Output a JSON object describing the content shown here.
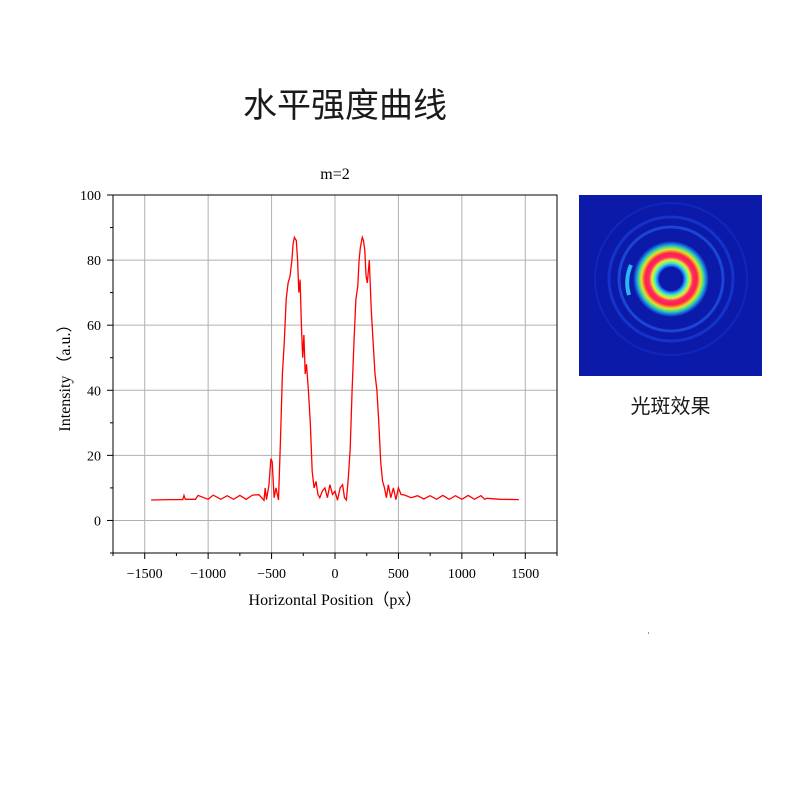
{
  "page_title": "水平强度曲线",
  "spot_caption": "光斑效果",
  "colors": {
    "curve": "#ff0000",
    "grid": "#b0b0b0",
    "axis": "#000000",
    "spot_background": "#0b1aa8"
  },
  "chart_data": {
    "type": "line",
    "title": "m=2",
    "xlabel": "Horizontal Position（px）",
    "ylabel": "Intensity （a.u.）",
    "xlim": [
      -1750,
      1750
    ],
    "ylim": [
      -10,
      100
    ],
    "xticks": [
      -1500,
      -1000,
      -500,
      0,
      500,
      1000,
      1500
    ],
    "xtick_labels": [
      "−1500",
      "−1000",
      "−500",
      "0",
      "500",
      "1000",
      "1500"
    ],
    "yticks": [
      0,
      20,
      40,
      60,
      80,
      100
    ],
    "ytick_labels": [
      "0",
      "20",
      "40",
      "60",
      "80",
      "100"
    ],
    "grid": true,
    "series": [
      {
        "x": [
          -1450,
          -1300,
          -1200,
          -1190,
          -1180,
          -1100,
          -1080,
          -1000,
          -960,
          -900,
          -850,
          -800,
          -750,
          -700,
          -650,
          -600,
          -560,
          -550,
          -540,
          -520,
          -505,
          -495,
          -480,
          -465,
          -455,
          -445,
          -430,
          -415,
          -400,
          -385,
          -370,
          -355,
          -340,
          -330,
          -320,
          -305,
          -295,
          -285,
          -275,
          -265,
          -255,
          -245,
          -235,
          -225,
          -210,
          -195,
          -180,
          -165,
          -150,
          -135,
          -120,
          -100,
          -80,
          -60,
          -40,
          -20,
          0,
          20,
          40,
          60,
          75,
          90,
          105,
          120,
          135,
          150,
          165,
          180,
          190,
          200,
          215,
          225,
          235,
          245,
          255,
          270,
          285,
          300,
          315,
          330,
          345,
          360,
          375,
          390,
          405,
          420,
          440,
          460,
          480,
          500,
          520,
          550,
          600,
          650,
          700,
          750,
          800,
          850,
          900,
          950,
          1000,
          1050,
          1100,
          1150,
          1180,
          1200,
          1300,
          1450
        ],
        "values": [
          6.3,
          6.4,
          6.4,
          7.7,
          6.5,
          6.5,
          7.7,
          6.5,
          7.8,
          6.5,
          7.6,
          6.5,
          7.7,
          6.5,
          7.8,
          7.9,
          6.2,
          10,
          6.4,
          11,
          19,
          18,
          7,
          10,
          8,
          6.3,
          25,
          45,
          55,
          68,
          73,
          75,
          80,
          85,
          87,
          86,
          80,
          70,
          74,
          60,
          50,
          57,
          45,
          48,
          40,
          30,
          15,
          10,
          12,
          8,
          7,
          9,
          10,
          7,
          11,
          8,
          9,
          6.2,
          10,
          11,
          7,
          6.3,
          13,
          22,
          40,
          55,
          68,
          72,
          80,
          84,
          87,
          86,
          83,
          75,
          73,
          80,
          65,
          55,
          45,
          40,
          30,
          18,
          12,
          10,
          7,
          11,
          7,
          10,
          6.4,
          10,
          8,
          7.8,
          7,
          7.6,
          6.6,
          7.6,
          6.5,
          7.7,
          6.5,
          7.6,
          6.5,
          7.7,
          6.5,
          7.6,
          6.5,
          6.8,
          6.5,
          6.4
        ]
      }
    ]
  }
}
